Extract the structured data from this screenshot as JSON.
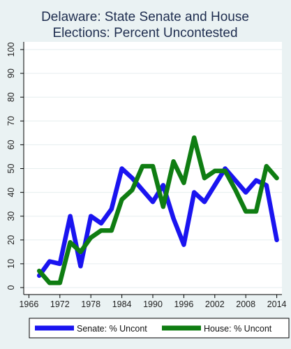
{
  "chart_data": {
    "type": "line",
    "title_lines": [
      "Delaware: State Senate and House",
      "Elections: Percent Uncontested"
    ],
    "xlabel": "",
    "ylabel": "",
    "xlim": [
      1965,
      2015
    ],
    "ylim": [
      0,
      100
    ],
    "x_ticks": [
      1966,
      1972,
      1978,
      1984,
      1990,
      1996,
      2002,
      2008,
      2014
    ],
    "y_ticks": [
      0,
      10,
      20,
      30,
      40,
      50,
      60,
      70,
      80,
      90,
      100
    ],
    "grid": "horizontal",
    "legend_position": "bottom",
    "series": [
      {
        "name": "Senate: % Uncont",
        "color": "#1a14f0",
        "x": [
          1968,
          1970,
          1972,
          1974,
          1976,
          1978,
          1980,
          1982,
          1984,
          1986,
          1988,
          1990,
          1992,
          1994,
          1996,
          1998,
          2000,
          2002,
          2004,
          2006,
          2008,
          2010,
          2012,
          2014
        ],
        "values": [
          5,
          11,
          10,
          30,
          9,
          30,
          27,
          33,
          50,
          46,
          41,
          36,
          43,
          29,
          18,
          40,
          36,
          43,
          50,
          45,
          40,
          45,
          43,
          20
        ]
      },
      {
        "name": "House: % Uncont",
        "color": "#0f7d12",
        "x": [
          1968,
          1970,
          1972,
          1974,
          1976,
          1978,
          1980,
          1982,
          1984,
          1986,
          1988,
          1990,
          1992,
          1994,
          1996,
          1998,
          2000,
          2002,
          2004,
          2006,
          2008,
          2010,
          2012,
          2014
        ],
        "values": [
          7,
          2,
          2,
          19,
          15,
          21,
          24,
          24,
          37,
          41,
          51,
          51,
          34,
          53,
          44,
          63,
          46,
          49,
          49,
          41,
          32,
          32,
          51,
          46
        ]
      }
    ]
  }
}
